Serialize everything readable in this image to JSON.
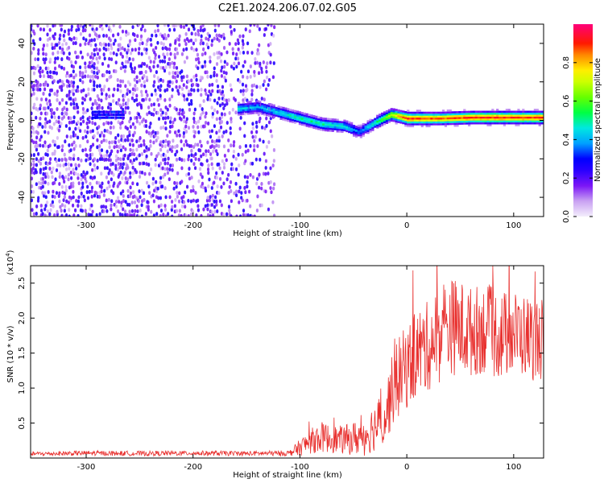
{
  "figure_title": "C2E1.2024.206.07.02.G05",
  "chart_data": [
    {
      "type": "heatmap",
      "title": "C2E1.2024.206.07.02.G05",
      "xlabel": "Height of straight line (km)",
      "ylabel": "Frequency (Hz)",
      "xlim": [
        -352,
        128
      ],
      "ylim": [
        -50,
        50
      ],
      "x_ticks": [
        -300,
        -200,
        -100,
        0,
        100
      ],
      "y_ticks": [
        -40,
        -20,
        0,
        20,
        40
      ],
      "colorbar": {
        "label": "Normalized spectral amplitude",
        "range": [
          0,
          1
        ],
        "ticks": [
          0.0,
          0.2,
          0.4,
          0.6,
          0.8
        ],
        "tick_labels": [
          "0.0",
          "0.2",
          "0.4",
          "0.6",
          "0.8"
        ],
        "colormap": [
          "#e8dcf6",
          "#c79df0",
          "#8a2be2",
          "#6a00ff",
          "#0000ff",
          "#00c8ff",
          "#00ff66",
          "#aaff00",
          "#ffff00",
          "#ff8800",
          "#ff0000",
          "#ff0088"
        ]
      },
      "ridge": {
        "description_free": true,
        "x": [
          -160,
          -140,
          -120,
          -100,
          -80,
          -60,
          -45,
          -30,
          -15,
          0,
          30,
          60,
          90,
          128
        ],
        "freq": [
          6,
          7,
          4,
          1,
          -2,
          -3,
          -6,
          -1,
          3,
          1,
          1,
          1.5,
          1.5,
          1.5
        ],
        "amplitude": [
          0.45,
          0.4,
          0.45,
          0.5,
          0.5,
          0.45,
          0.35,
          0.5,
          0.7,
          0.9,
          0.85,
          0.9,
          0.9,
          0.9
        ]
      },
      "left_cluster": {
        "x": [
          -295,
          -265
        ],
        "freq": [
          2,
          6
        ]
      },
      "grid": false
    },
    {
      "type": "line",
      "title": "",
      "xlabel": "Height of straight line (km)",
      "ylabel": "SNR (10 * v/v)",
      "y_multiplier_label": "(x10",
      "y_multiplier_exp": "4",
      "y_multiplier_close": ")",
      "xlim": [
        -352,
        128
      ],
      "ylim": [
        0,
        27500
      ],
      "x_ticks": [
        -300,
        -200,
        -100,
        0,
        100
      ],
      "y_ticks": [
        5000,
        10000,
        15000,
        20000,
        25000
      ],
      "y_tick_labels": [
        "0.5",
        "1.0",
        "1.5",
        "2.0",
        "2.5"
      ],
      "color": "#e8302e",
      "series": [
        {
          "x": [
            -352,
            -300,
            -250,
            -200,
            -150,
            -110,
            -100,
            -90,
            -80,
            -70,
            -60,
            -50,
            -40,
            -30,
            -20,
            -15,
            -10,
            -5,
            0,
            10,
            20,
            30,
            40,
            50,
            60,
            70,
            80,
            90,
            100,
            110,
            120,
            128
          ],
          "values": [
            600,
            700,
            650,
            700,
            650,
            700,
            1500,
            2400,
            3000,
            2700,
            2600,
            2800,
            3200,
            4500,
            6000,
            9000,
            11000,
            12000,
            13000,
            15000,
            16000,
            17500,
            19000,
            18500,
            18000,
            18500,
            18000,
            17500,
            18000,
            17500,
            17000,
            17000
          ],
          "noise": [
            300,
            350,
            350,
            350,
            350,
            400,
            1200,
            1800,
            2200,
            2000,
            2000,
            2400,
            3000,
            3500,
            4500,
            5000,
            5500,
            6000,
            6000,
            6500,
            6500,
            7000,
            7000,
            7000,
            6500,
            6500,
            6500,
            6500,
            6000,
            6000,
            6000,
            6000
          ]
        }
      ],
      "grid": false
    }
  ]
}
